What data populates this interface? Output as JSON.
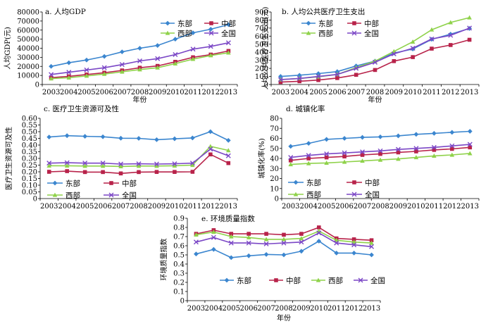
{
  "colors": {
    "东部": "#3b86cf",
    "中部": "#b8234a",
    "西部": "#8fd24a",
    "全国": "#7b47c6"
  },
  "chart_data": [
    {
      "type": "line",
      "title": "a. 人均GDP",
      "xlabel": "年份",
      "ylabel": "人均GDP(元)",
      "x": [
        "2003",
        "2004",
        "2005",
        "2006",
        "2007",
        "2008",
        "2009",
        "2010",
        "2011",
        "2012",
        "2013"
      ],
      "ylim": [
        0,
        80000
      ],
      "yticks": [
        0,
        10000,
        20000,
        30000,
        40000,
        50000,
        60000,
        70000,
        80000
      ],
      "yticklabels": [
        "0",
        "10000",
        "20000",
        "30000",
        "40000",
        "50000",
        "60000",
        "70000",
        "80000"
      ],
      "legend_position": "top-right",
      "series": [
        {
          "name": "东部",
          "values": [
            20000,
            24000,
            27000,
            31000,
            36000,
            40000,
            43000,
            50000,
            57000,
            61000,
            66000
          ]
        },
        {
          "name": "中部",
          "values": [
            7500,
            9000,
            11000,
            13000,
            15500,
            18500,
            20500,
            25000,
            30000,
            33000,
            37000
          ]
        },
        {
          "name": "西部",
          "values": [
            6500,
            7500,
            9500,
            11500,
            14000,
            16500,
            18500,
            23000,
            28000,
            32000,
            35000
          ]
        },
        {
          "name": "全国",
          "values": [
            11000,
            13500,
            16000,
            18500,
            22000,
            26000,
            28500,
            33000,
            39000,
            42000,
            46000
          ]
        }
      ]
    },
    {
      "type": "line",
      "title": "b. 人均公共医疗卫生支出",
      "xlabel": "年份",
      "ylabel": "人均公共医疗卫生支出(元)",
      "x": [
        "2003",
        "2004",
        "2005",
        "2006",
        "2007",
        "2008",
        "2009",
        "2010",
        "2011",
        "2012",
        "2013"
      ],
      "ylim": [
        0,
        900
      ],
      "yticks": [
        0,
        100,
        200,
        300,
        400,
        500,
        600,
        700,
        800,
        900
      ],
      "yticklabels": [
        "0",
        "100",
        "200",
        "300",
        "400",
        "500",
        "600",
        "700",
        "800",
        "900"
      ],
      "legend_position": "top-left",
      "series": [
        {
          "name": "东部",
          "values": [
            100,
            115,
            135,
            160,
            230,
            290,
            390,
            440,
            560,
            625,
            695
          ]
        },
        {
          "name": "中部",
          "values": [
            30,
            40,
            55,
            80,
            120,
            180,
            290,
            340,
            445,
            490,
            555
          ]
        },
        {
          "name": "西部",
          "values": [
            60,
            75,
            95,
            125,
            210,
            290,
            410,
            530,
            680,
            770,
            830
          ]
        },
        {
          "name": "全国",
          "values": [
            60,
            75,
            100,
            125,
            200,
            275,
            380,
            450,
            565,
            610,
            700
          ]
        }
      ]
    },
    {
      "type": "line",
      "title": "c. 医疗卫生资源可及性",
      "xlabel": "",
      "ylabel": "医疗卫生资源可及性",
      "x": [
        "2003",
        "2004",
        "2005",
        "2006",
        "2007",
        "2008",
        "2009",
        "2010",
        "2011",
        "2012",
        "2013"
      ],
      "ylim": [
        0,
        0.6
      ],
      "yticks": [
        0,
        0.05,
        0.1,
        0.15,
        0.2,
        0.25,
        0.3,
        0.35,
        0.4,
        0.45,
        0.5,
        0.55,
        0.6
      ],
      "yticklabels": [
        "0",
        "0.05",
        "0.10",
        "0.15",
        "0.20",
        "0.25",
        "0.30",
        "0.35",
        "0.40",
        "0.45",
        "0.50",
        "0.55",
        "0.60"
      ],
      "legend_position": "bottom",
      "series": [
        {
          "name": "东部",
          "values": [
            0.46,
            0.47,
            0.465,
            0.462,
            0.451,
            0.45,
            0.44,
            0.447,
            0.453,
            0.5,
            0.435
          ]
        },
        {
          "name": "中部",
          "values": [
            0.2,
            0.205,
            0.198,
            0.198,
            0.188,
            0.198,
            0.199,
            0.199,
            0.2,
            0.33,
            0.265
          ]
        },
        {
          "name": "西部",
          "values": [
            0.245,
            0.245,
            0.243,
            0.243,
            0.24,
            0.243,
            0.243,
            0.245,
            0.25,
            0.39,
            0.36
          ]
        },
        {
          "name": "全国",
          "values": [
            0.265,
            0.268,
            0.265,
            0.265,
            0.258,
            0.26,
            0.258,
            0.26,
            0.265,
            0.37,
            0.32
          ]
        }
      ]
    },
    {
      "type": "line",
      "title": "d. 城镇化率",
      "xlabel": "年份",
      "ylabel": "城镇化率(%)",
      "x": [
        "2003",
        "2004",
        "2005",
        "2006",
        "2007",
        "2008",
        "2009",
        "2010",
        "2011",
        "2012",
        "2013"
      ],
      "ylim": [
        0,
        80
      ],
      "yticks": [
        0,
        10,
        20,
        30,
        40,
        50,
        60,
        70,
        80
      ],
      "yticklabels": [
        "0",
        "10",
        "20",
        "30",
        "40",
        "50",
        "60",
        "70",
        "80"
      ],
      "legend_position": "bottom",
      "series": [
        {
          "name": "东部",
          "values": [
            52,
            55,
            59,
            60,
            61,
            61.5,
            62.5,
            64,
            65,
            66,
            67
          ]
        },
        {
          "name": "中部",
          "values": [
            38,
            40,
            41,
            42,
            43.5,
            44.5,
            46,
            47,
            48.5,
            49.5,
            51
          ]
        },
        {
          "name": "西部",
          "values": [
            34,
            35,
            35.5,
            36.5,
            37.5,
            38.5,
            39.5,
            41,
            42.5,
            43.5,
            45
          ]
        },
        {
          "name": "全国",
          "values": [
            41,
            43,
            44.5,
            45.5,
            46.5,
            47.5,
            49,
            50,
            51,
            52.5,
            54
          ]
        }
      ]
    },
    {
      "type": "line",
      "title": "e. 环境质量指数",
      "xlabel": "年份",
      "ylabel": "环境质量指数",
      "x": [
        "2003",
        "2004",
        "2005",
        "2006",
        "2007",
        "2008",
        "2009",
        "2010",
        "2011",
        "2012",
        "2013"
      ],
      "ylim": [
        0,
        0.9
      ],
      "yticks": [
        0,
        0.1,
        0.2,
        0.3,
        0.4,
        0.5,
        0.6,
        0.7,
        0.8,
        0.9
      ],
      "yticklabels": [
        "0",
        "0.1",
        "0.2",
        "0.3",
        "0.4",
        "0.5",
        "0.6",
        "0.7",
        "0.8",
        "0.9"
      ],
      "legend_position": "bottom",
      "series": [
        {
          "name": "东部",
          "values": [
            0.51,
            0.56,
            0.47,
            0.49,
            0.505,
            0.5,
            0.54,
            0.65,
            0.52,
            0.52,
            0.5
          ]
        },
        {
          "name": "中部",
          "values": [
            0.73,
            0.77,
            0.73,
            0.73,
            0.73,
            0.72,
            0.73,
            0.8,
            0.68,
            0.67,
            0.66
          ]
        },
        {
          "name": "西部",
          "values": [
            0.72,
            0.75,
            0.7,
            0.69,
            0.67,
            0.67,
            0.68,
            0.76,
            0.66,
            0.64,
            0.63
          ]
        },
        {
          "name": "全国",
          "values": [
            0.64,
            0.69,
            0.63,
            0.63,
            0.62,
            0.63,
            0.64,
            0.74,
            0.63,
            0.61,
            0.59
          ]
        }
      ]
    }
  ]
}
